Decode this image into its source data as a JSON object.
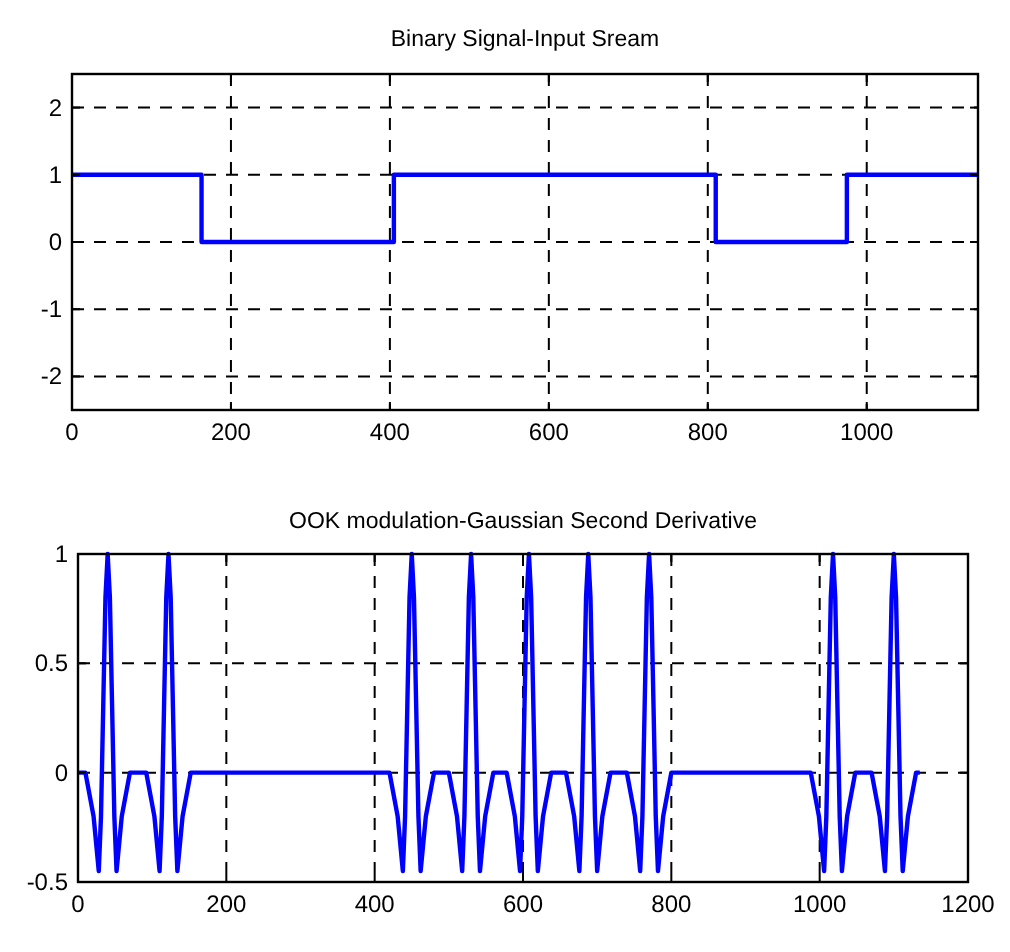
{
  "chart_data": [
    {
      "type": "step",
      "title": "Binary Signal-Input Sream",
      "x": [
        0,
        163,
        405,
        810,
        975,
        1140
      ],
      "series": [
        {
          "color": "#0000ff",
          "values": [
            1,
            0,
            1,
            0,
            1,
            1
          ]
        }
      ],
      "xlim": [
        0,
        1140
      ],
      "ylim": [
        -2.5,
        2.5
      ],
      "xticks": [
        0,
        200,
        400,
        600,
        800,
        1000
      ],
      "yticks": [
        -2,
        -1,
        0,
        1,
        2
      ],
      "grid": true
    },
    {
      "type": "line",
      "title": "OOK modulation-Gaussian Second Derivative",
      "x": [
        0,
        10,
        21,
        28,
        31,
        34,
        37,
        40,
        43,
        46,
        49,
        52,
        59,
        70,
        92,
        103,
        110,
        113,
        116,
        119,
        122,
        125,
        128,
        131,
        134,
        141,
        152,
        420,
        431,
        438,
        441,
        444,
        447,
        450,
        453,
        456,
        459,
        462,
        469,
        480,
        500,
        511,
        518,
        521,
        524,
        527,
        530,
        533,
        536,
        539,
        542,
        549,
        560,
        578,
        589,
        596,
        599,
        602,
        605,
        608,
        611,
        614,
        617,
        620,
        627,
        638,
        658,
        669,
        676,
        679,
        682,
        685,
        688,
        691,
        694,
        697,
        700,
        707,
        718,
        740,
        751,
        758,
        761,
        764,
        767,
        770,
        773,
        776,
        779,
        782,
        789,
        800,
        988,
        999,
        1006,
        1009,
        1012,
        1015,
        1018,
        1021,
        1024,
        1027,
        1030,
        1037,
        1048,
        1070,
        1081,
        1088,
        1091,
        1094,
        1097,
        1100,
        1103,
        1106,
        1109,
        1112,
        1119,
        1130,
        1135
      ],
      "series": [
        {
          "color": "#0000ff",
          "values": [
            0,
            0,
            -0.2,
            -0.45,
            -0.2,
            0.3,
            0.8,
            1,
            0.8,
            0.3,
            -0.2,
            -0.45,
            -0.2,
            0,
            0,
            -0.2,
            -0.45,
            -0.2,
            0.3,
            0.8,
            1,
            0.8,
            0.3,
            -0.2,
            -0.45,
            -0.2,
            0,
            0,
            -0.2,
            -0.45,
            -0.2,
            0.3,
            0.8,
            1,
            0.8,
            0.3,
            -0.2,
            -0.45,
            -0.2,
            0,
            0,
            -0.2,
            -0.45,
            -0.2,
            0.3,
            0.8,
            1,
            0.8,
            0.3,
            -0.2,
            -0.45,
            -0.2,
            0,
            0,
            -0.2,
            -0.45,
            -0.2,
            0.3,
            0.8,
            1,
            0.8,
            0.3,
            -0.2,
            -0.45,
            -0.2,
            0,
            0,
            -0.2,
            -0.45,
            -0.2,
            0.3,
            0.8,
            1,
            0.8,
            0.3,
            -0.2,
            -0.45,
            -0.2,
            0,
            0,
            -0.2,
            -0.45,
            -0.2,
            0.3,
            0.8,
            1,
            0.8,
            0.3,
            -0.2,
            -0.45,
            -0.2,
            0,
            0,
            -0.2,
            -0.45,
            -0.2,
            0.3,
            0.8,
            1,
            0.8,
            0.3,
            -0.2,
            -0.45,
            -0.2,
            0,
            0,
            -0.2,
            -0.45,
            -0.2,
            0.3,
            0.8,
            1,
            0.8,
            0.3,
            -0.2,
            -0.45,
            -0.2,
            0,
            0
          ]
        }
      ],
      "xlim": [
        0,
        1200
      ],
      "ylim": [
        -0.5,
        1
      ],
      "xticks": [
        0,
        200,
        400,
        600,
        800,
        1000,
        1200
      ],
      "yticks": [
        -0.5,
        0,
        0.5,
        1
      ],
      "grid": true
    }
  ]
}
